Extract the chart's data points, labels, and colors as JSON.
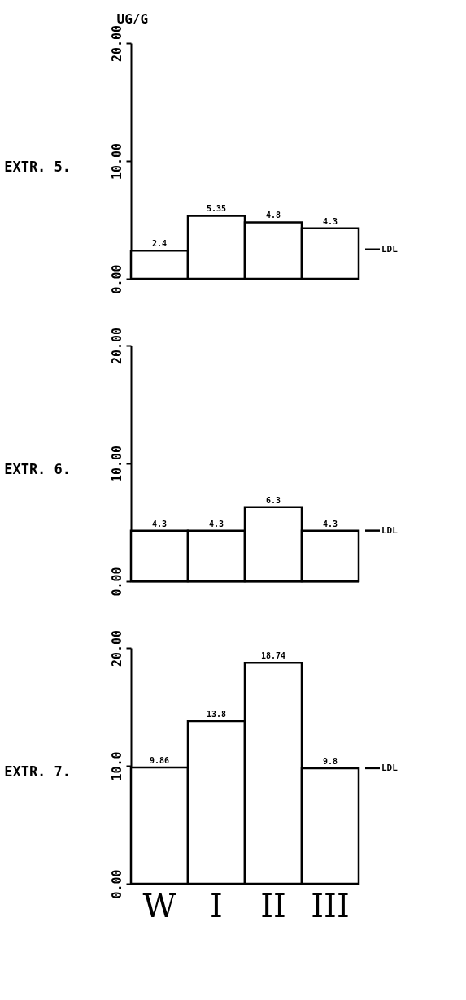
{
  "chart_data": [
    {
      "type": "bar",
      "title": "EXTR. 5.",
      "ylabel": "UG/G",
      "categories": [
        null,
        null,
        null,
        null
      ],
      "values": [
        2.4,
        5.35,
        4.8,
        4.3
      ],
      "colors": [
        "#ffffff",
        "#ffffff",
        "#ffffff",
        "#ffffff"
      ],
      "data_labels": true,
      "ylim": [
        0,
        20
      ],
      "yticks": [
        {
          "value": 0,
          "label": "0.00"
        },
        {
          "value": 10,
          "label": "10.00"
        },
        {
          "value": 20,
          "label": "20.00"
        }
      ],
      "tick_labels": "y",
      "grid": false,
      "ref_lines": [
        {
          "axis": "y",
          "value": 2.5,
          "label": "LDL"
        }
      ]
    },
    {
      "type": "bar",
      "title": "EXTR. 6.",
      "categories": [
        null,
        null,
        null,
        null
      ],
      "values": [
        4.3,
        4.3,
        6.3,
        4.3
      ],
      "colors": [
        "#ffffff",
        "#ffffff",
        "#ffffff",
        "#ffffff"
      ],
      "data_labels": true,
      "ylim": [
        0,
        20
      ],
      "yticks": [
        {
          "value": 0,
          "label": "0.00"
        },
        {
          "value": 10,
          "label": "10.00"
        },
        {
          "value": 20,
          "label": "20.00"
        }
      ],
      "tick_labels": "y",
      "grid": false,
      "ref_lines": [
        {
          "axis": "y",
          "value": 4.3,
          "label": "LDL"
        }
      ]
    },
    {
      "type": "bar",
      "title": "EXTR. 7.",
      "categories": [
        "W",
        "I",
        "II",
        "III"
      ],
      "values": [
        9.86,
        13.8,
        18.74,
        9.8
      ],
      "colors": [
        "#ffffff",
        "#ffffff",
        "#ffffff",
        "#ffffff"
      ],
      "data_labels": true,
      "ylim": [
        0,
        20
      ],
      "yticks": [
        {
          "value": 0,
          "label": "0.00"
        },
        {
          "value": 10,
          "label": "10.0"
        },
        {
          "value": 20,
          "label": "20.00"
        }
      ],
      "grid": false,
      "ref_lines": [
        {
          "axis": "y",
          "value": 9.8,
          "label": "LDL"
        }
      ]
    }
  ]
}
